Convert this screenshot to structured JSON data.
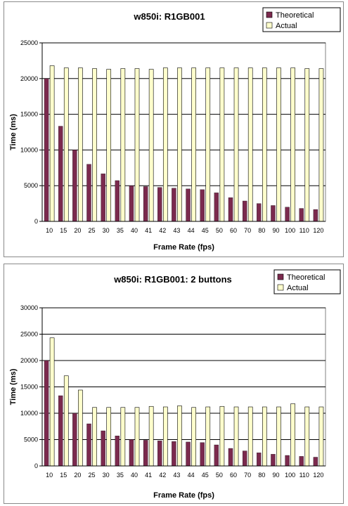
{
  "chart_data": [
    {
      "type": "bar",
      "title": "w850i: R1GB001",
      "xlabel": "Frame Rate (fps)",
      "ylabel": "Time (ms)",
      "ylim": [
        0,
        25000
      ],
      "yticks": [
        0,
        5000,
        10000,
        15000,
        20000,
        25000
      ],
      "grid": true,
      "legend_position": "top-right",
      "categories": [
        "10",
        "15",
        "20",
        "25",
        "30",
        "35",
        "40",
        "41",
        "42",
        "43",
        "44",
        "45",
        "50",
        "60",
        "70",
        "80",
        "90",
        "100",
        "110",
        "120"
      ],
      "series": [
        {
          "name": "Theoretical",
          "color": "#7b2a4e",
          "values": [
            20000,
            13333,
            10000,
            8000,
            6667,
            5714,
            5000,
            4878,
            4762,
            4651,
            4545,
            4444,
            4000,
            3333,
            2857,
            2500,
            2222,
            2000,
            1818,
            1667
          ]
        },
        {
          "name": "Actual",
          "color": "#ffffcc",
          "values": [
            21800,
            21500,
            21500,
            21400,
            21300,
            21400,
            21400,
            21300,
            21500,
            21500,
            21500,
            21500,
            21500,
            21500,
            21500,
            21500,
            21500,
            21500,
            21400,
            21400
          ]
        }
      ]
    },
    {
      "type": "bar",
      "title": "w850i: R1GB001: 2 buttons",
      "xlabel": "Frame Rate (fps)",
      "ylabel": "Time (ms)",
      "ylim": [
        0,
        30000
      ],
      "yticks": [
        0,
        5000,
        10000,
        15000,
        20000,
        25000,
        30000
      ],
      "grid": true,
      "legend_position": "top-right",
      "categories": [
        "10",
        "15",
        "20",
        "25",
        "30",
        "35",
        "40",
        "41",
        "42",
        "43",
        "44",
        "45",
        "50",
        "60",
        "70",
        "80",
        "90",
        "100",
        "110",
        "120"
      ],
      "series": [
        {
          "name": "Theoretical",
          "color": "#7b2a4e",
          "values": [
            20000,
            13333,
            10000,
            8000,
            6667,
            5714,
            5000,
            4878,
            4762,
            4651,
            4545,
            4444,
            4000,
            3333,
            2857,
            2500,
            2222,
            2000,
            1818,
            1667
          ]
        },
        {
          "name": "Actual",
          "color": "#ffffcc",
          "values": [
            24300,
            17100,
            14400,
            11100,
            11100,
            11100,
            11100,
            11300,
            11200,
            11400,
            11100,
            11200,
            11300,
            11200,
            11200,
            11200,
            11200,
            11800,
            11200,
            11200
          ]
        }
      ]
    }
  ]
}
